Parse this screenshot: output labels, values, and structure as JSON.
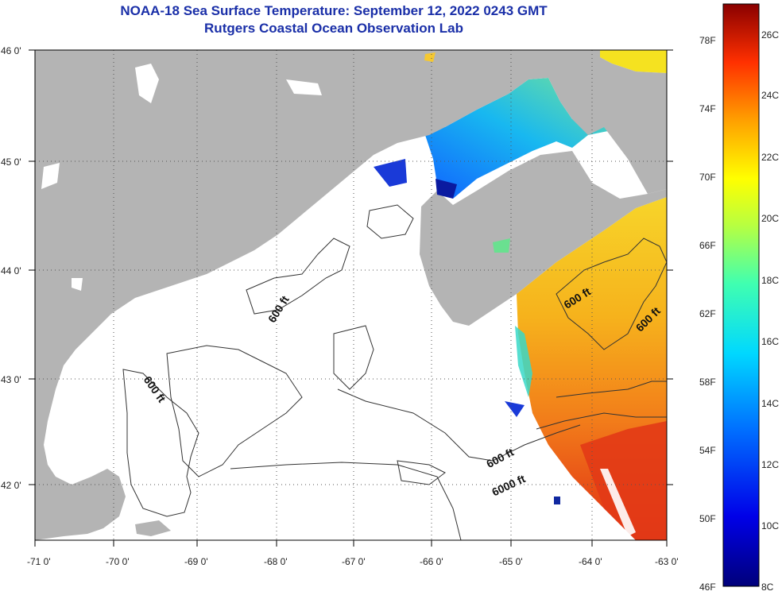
{
  "title": "NOAA-18 Sea Surface Temperature:  September 12, 2022 0243 GMT",
  "subtitle": "Rutgers Coastal Ocean Observation Lab",
  "lon_ticks": [
    "-71 0'",
    "-70 0'",
    "-69 0'",
    "-68 0'",
    "-67 0'",
    "-66 0'",
    "-65 0'",
    "-64 0'",
    "-63 0'"
  ],
  "lat_ticks": [
    "46 0'",
    "45 0'",
    "44 0'",
    "43 0'",
    "42 0'"
  ],
  "contours": {
    "label_600_a": "600 ft",
    "label_600_b": "600 ft",
    "label_600_c": "600 ft",
    "label_600_d": "600 ft",
    "label_600_e": "600 ft",
    "label_6000": "6000 ft"
  },
  "colorbar": {
    "f_labels": [
      "78F",
      "74F",
      "70F",
      "66F",
      "62F",
      "58F",
      "54F",
      "50F",
      "46F"
    ],
    "c_labels": [
      "26C",
      "24C",
      "22C",
      "20C",
      "18C",
      "16C",
      "14C",
      "12C",
      "10C",
      "8C"
    ]
  },
  "colors": {
    "land": "#b4b4b4",
    "title": "#1a2fa8",
    "sst_warm": "#f5a21b",
    "sst_hot": "#e03818"
  }
}
